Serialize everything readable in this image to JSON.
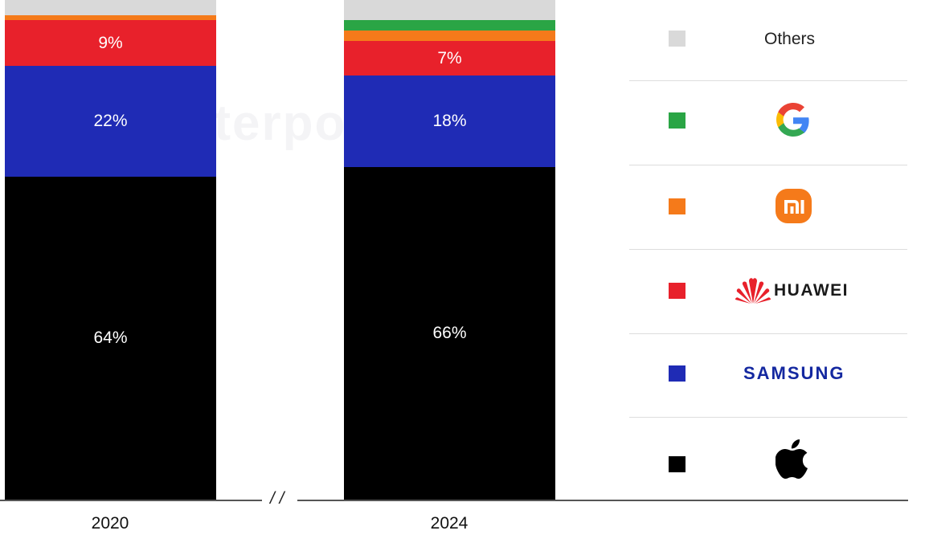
{
  "chart_data": {
    "type": "bar",
    "stacked": true,
    "categories": [
      "2020",
      "2024"
    ],
    "series": [
      {
        "name": "Apple",
        "color": "#000000",
        "values": [
          64,
          66
        ],
        "labels": [
          "64%",
          "66%"
        ]
      },
      {
        "name": "SAMSUNG",
        "color": "#1f2bb5",
        "values": [
          22,
          18
        ],
        "labels": [
          "22%",
          "18%"
        ]
      },
      {
        "name": "HUAWEI",
        "color": "#e8212b",
        "values": [
          9,
          7
        ],
        "labels": [
          "9%",
          "7%"
        ]
      },
      {
        "name": "Xiaomi",
        "color": "#f57a1a",
        "values": [
          1,
          2
        ],
        "labels": [
          "",
          ""
        ]
      },
      {
        "name": "Google",
        "color": "#2aa545",
        "values": [
          0,
          2
        ],
        "labels": [
          "",
          ""
        ]
      },
      {
        "name": "Others",
        "color": "#d9d9d9",
        "values": [
          4,
          5
        ],
        "labels": [
          "",
          ""
        ]
      }
    ],
    "ylim": [
      0,
      100
    ],
    "axis_break": "/ /",
    "legend_position": "right",
    "watermark": "Counterpoint"
  },
  "legend": [
    {
      "key": "others",
      "text": "Others",
      "color": "#d9d9d9",
      "icon": "others-text"
    },
    {
      "key": "google",
      "text": "",
      "color": "#2aa545",
      "icon": "google-logo-icon"
    },
    {
      "key": "xiaomi",
      "text": "mi",
      "color": "#f57a1a",
      "icon": "xiaomi-logo-icon"
    },
    {
      "key": "huawei",
      "text": "HUAWEI",
      "color": "#e8212b",
      "icon": "huawei-logo-icon"
    },
    {
      "key": "samsung",
      "text": "SAMSUNG",
      "color": "#1f2bb5",
      "icon": "samsung-logo-icon"
    },
    {
      "key": "apple",
      "text": "",
      "color": "#000000",
      "icon": "apple-logo-icon"
    }
  ]
}
